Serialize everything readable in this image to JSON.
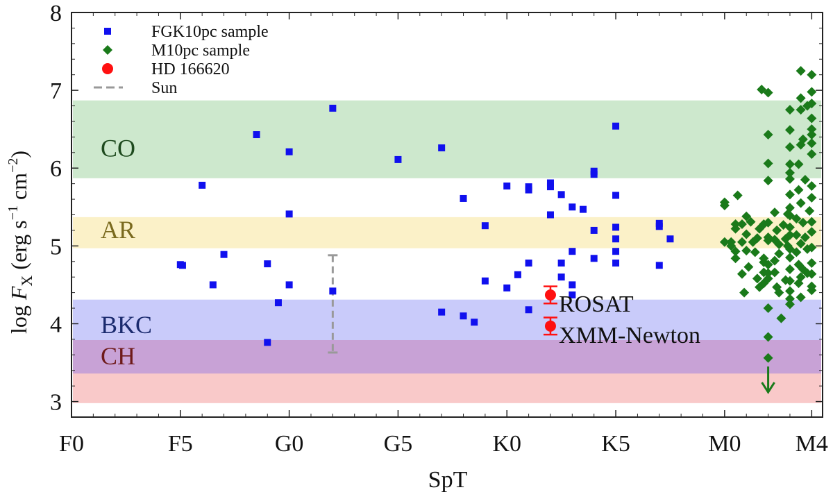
{
  "chart_data": {
    "type": "scatter",
    "xlabel": "SpT",
    "ylabel": "log F_X (erg s^-1 cm^-2)",
    "ylabel_parts": {
      "pre": "log ",
      "var": "F",
      "sub": "X",
      "units_open": " (erg s",
      "exp1": "−1",
      "units_mid": " cm",
      "exp2": "−2",
      "units_close": ")"
    },
    "xlim": [
      0,
      34.5
    ],
    "ylim": [
      2.8,
      8
    ],
    "x_ticks": [
      {
        "pos": 0,
        "label": "F0"
      },
      {
        "pos": 5,
        "label": "F5"
      },
      {
        "pos": 10,
        "label": "G0"
      },
      {
        "pos": 15,
        "label": "G5"
      },
      {
        "pos": 20,
        "label": "K0"
      },
      {
        "pos": 25,
        "label": "K5"
      },
      {
        "pos": 30,
        "label": "M0"
      },
      {
        "pos": 34,
        "label": "M4"
      }
    ],
    "y_ticks": [
      3,
      4,
      5,
      6,
      7,
      8
    ],
    "bands": [
      {
        "label": "CO",
        "y0": 5.87,
        "y1": 6.87,
        "color": "#cde8cd",
        "text_color": "#1e4a1e",
        "label_y": 6.15
      },
      {
        "label": "AR",
        "y0": 4.97,
        "y1": 5.37,
        "color": "#fbf1c8",
        "text_color": "#7a6a1e",
        "label_y": 5.1
      },
      {
        "label": "BKC",
        "y0": 3.77,
        "y1": 4.31,
        "color": "#c9cbfa",
        "text_color": "#1a2a6e",
        "label_y": 3.88
      },
      {
        "label": "CH",
        "y0": 2.98,
        "y1": 3.79,
        "color": "#f9c9c9",
        "text_color": "#6e1a1a",
        "label_y": 3.48
      },
      {
        "label": "",
        "y0": 3.36,
        "y1": 3.79,
        "color": "#c8a2d6",
        "text_color": "#000000",
        "label_y": 0
      }
    ],
    "legend": [
      {
        "label": "FGK10pc sample",
        "marker": "square",
        "color": "#1010ee"
      },
      {
        "label": "M10pc sample",
        "marker": "diamond",
        "color": "#1a7a1a"
      },
      {
        "label": "HD 166620",
        "marker": "circle",
        "color": "#ff1010"
      },
      {
        "label": "Sun",
        "marker": "dashed-line",
        "color": "#999999"
      }
    ],
    "series": [
      {
        "name": "FGK10pc sample",
        "marker": "square",
        "color": "#1010ee",
        "points": [
          [
            5,
            4.76
          ],
          [
            5.1,
            4.75
          ],
          [
            6,
            5.78
          ],
          [
            6.5,
            4.5
          ],
          [
            7,
            4.89
          ],
          [
            8.5,
            6.43
          ],
          [
            9,
            4.77
          ],
          [
            9,
            3.76
          ],
          [
            9.5,
            4.27
          ],
          [
            10,
            6.21
          ],
          [
            10,
            5.41
          ],
          [
            10,
            4.5
          ],
          [
            12,
            6.77
          ],
          [
            12,
            4.42
          ],
          [
            15,
            6.11
          ],
          [
            17,
            6.26
          ],
          [
            17,
            4.15
          ],
          [
            18,
            5.61
          ],
          [
            18,
            4.1
          ],
          [
            18.5,
            4.02
          ],
          [
            19,
            5.26
          ],
          [
            19,
            4.55
          ],
          [
            20,
            5.77
          ],
          [
            20,
            4.46
          ],
          [
            20.5,
            4.63
          ],
          [
            21,
            5.76
          ],
          [
            21,
            5.72
          ],
          [
            21,
            4.78
          ],
          [
            21,
            4.18
          ],
          [
            22,
            5.81
          ],
          [
            22,
            5.76
          ],
          [
            22,
            5.4
          ],
          [
            22.5,
            5.66
          ],
          [
            22.5,
            4.78
          ],
          [
            22.5,
            4.6
          ],
          [
            23,
            5.5
          ],
          [
            23,
            4.93
          ],
          [
            23,
            4.5
          ],
          [
            23,
            4.37
          ],
          [
            23.5,
            5.47
          ],
          [
            24,
            5.96
          ],
          [
            24,
            5.92
          ],
          [
            24,
            5.2
          ],
          [
            24,
            4.84
          ],
          [
            25,
            6.54
          ],
          [
            25,
            5.65
          ],
          [
            25,
            5.24
          ],
          [
            25,
            5.09
          ],
          [
            25,
            4.93
          ],
          [
            25,
            4.78
          ],
          [
            27,
            5.29
          ],
          [
            27,
            5.25
          ],
          [
            27,
            4.75
          ],
          [
            27.5,
            5.09
          ]
        ]
      },
      {
        "name": "M10pc sample",
        "marker": "diamond",
        "color": "#1a7a1a",
        "points": [
          [
            30,
            5.56
          ],
          [
            30,
            5.52
          ],
          [
            30,
            5.05
          ],
          [
            30.3,
            5.05
          ],
          [
            30.3,
            5.0
          ],
          [
            30.5,
            4.93
          ],
          [
            30.5,
            5.28
          ],
          [
            30.5,
            5.22
          ],
          [
            30.5,
            4.84
          ],
          [
            30.6,
            5.65
          ],
          [
            30.8,
            5.28
          ],
          [
            30.8,
            5.05
          ],
          [
            30.8,
            4.64
          ],
          [
            30.9,
            4.4
          ],
          [
            31,
            5.38
          ],
          [
            31,
            5.15
          ],
          [
            31,
            4.94
          ],
          [
            31.1,
            4.73
          ],
          [
            31.2,
            5.31
          ],
          [
            31.3,
            5.05
          ],
          [
            31.4,
            4.92
          ],
          [
            31.5,
            5.1
          ],
          [
            31.5,
            4.58
          ],
          [
            31.6,
            4.47
          ],
          [
            31.6,
            5.22
          ],
          [
            31.8,
            5.28
          ],
          [
            31.8,
            4.84
          ],
          [
            31.8,
            4.66
          ],
          [
            31.8,
            4.52
          ],
          [
            31.8,
            4.79
          ],
          [
            31.7,
            7.01
          ],
          [
            32,
            6.97
          ],
          [
            32,
            6.43
          ],
          [
            32,
            6.06
          ],
          [
            32,
            5.84
          ],
          [
            32,
            5.3
          ],
          [
            32,
            5.11
          ],
          [
            32,
            5.07
          ],
          [
            32,
            4.76
          ],
          [
            32,
            4.65
          ],
          [
            32,
            4.58
          ],
          [
            32,
            4.2
          ],
          [
            32,
            3.83
          ],
          [
            32,
            3.56
          ],
          [
            32.3,
            5.43
          ],
          [
            32.3,
            5.08
          ],
          [
            32.3,
            4.81
          ],
          [
            32.3,
            4.66
          ],
          [
            32.4,
            5.2
          ],
          [
            32.4,
            4.47
          ],
          [
            32.5,
            5.02
          ],
          [
            32.5,
            4.9
          ],
          [
            32.5,
            4.4
          ],
          [
            32.6,
            4.07
          ],
          [
            32.7,
            5.27
          ],
          [
            32.8,
            5.09
          ],
          [
            32.8,
            4.56
          ],
          [
            32.9,
            5.41
          ],
          [
            32.9,
            5.0
          ],
          [
            33,
            6.75
          ],
          [
            33,
            6.49
          ],
          [
            33,
            6.27
          ],
          [
            33,
            6.05
          ],
          [
            33,
            5.94
          ],
          [
            33,
            5.86
          ],
          [
            33,
            5.66
          ],
          [
            33,
            5.49
          ],
          [
            33,
            5.39
          ],
          [
            33,
            5.24
          ],
          [
            33,
            5.14
          ],
          [
            33,
            4.96
          ],
          [
            33,
            4.85
          ],
          [
            33,
            4.7
          ],
          [
            33,
            4.55
          ],
          [
            33,
            4.42
          ],
          [
            33,
            4.32
          ],
          [
            33,
            4.25
          ],
          [
            33.3,
            5.35
          ],
          [
            33.3,
            5.14
          ],
          [
            33.3,
            4.92
          ],
          [
            33.4,
            6.05
          ],
          [
            33.4,
            5.72
          ],
          [
            33.4,
            4.76
          ],
          [
            33.4,
            4.52
          ],
          [
            33.5,
            7.25
          ],
          [
            33.5,
            6.9
          ],
          [
            33.5,
            6.75
          ],
          [
            33.5,
            6.3
          ],
          [
            33.5,
            5.55
          ],
          [
            33.5,
            5.03
          ],
          [
            33.5,
            4.6
          ],
          [
            33.5,
            4.34
          ],
          [
            33.6,
            6.37
          ],
          [
            33.6,
            5.3
          ],
          [
            33.6,
            4.7
          ],
          [
            33.7,
            5.85
          ],
          [
            33.7,
            5.11
          ],
          [
            33.8,
            6.8
          ],
          [
            33.8,
            4.96
          ],
          [
            33.8,
            4.65
          ],
          [
            33.9,
            5.45
          ],
          [
            34,
            7.2
          ],
          [
            34,
            6.98
          ],
          [
            34,
            6.83
          ],
          [
            34,
            6.64
          ],
          [
            34,
            6.5
          ],
          [
            34,
            6.43
          ],
          [
            34,
            6.32
          ],
          [
            34,
            6.18
          ],
          [
            34,
            5.77
          ],
          [
            34,
            5.62
          ],
          [
            34,
            5.31
          ],
          [
            34,
            5.18
          ],
          [
            34,
            4.98
          ],
          [
            34,
            4.78
          ],
          [
            34,
            4.64
          ],
          [
            34,
            4.48
          ],
          [
            34,
            4.43
          ]
        ]
      }
    ],
    "target": {
      "name": "HD 166620",
      "color": "#ff1010",
      "points": [
        {
          "x": 22,
          "y": 4.37,
          "yerr": 0.11,
          "label": "ROSAT"
        },
        {
          "x": 22,
          "y": 3.97,
          "yerr": 0.11,
          "label": "XMM-Newton"
        }
      ]
    },
    "sun": {
      "x": 12,
      "ymin": 3.63,
      "ymax": 4.88,
      "color": "#999999"
    },
    "upper_limit_arrow": {
      "x": 32,
      "y_from": 3.45,
      "y_to": 3.12,
      "color": "#1a7a1a"
    }
  }
}
